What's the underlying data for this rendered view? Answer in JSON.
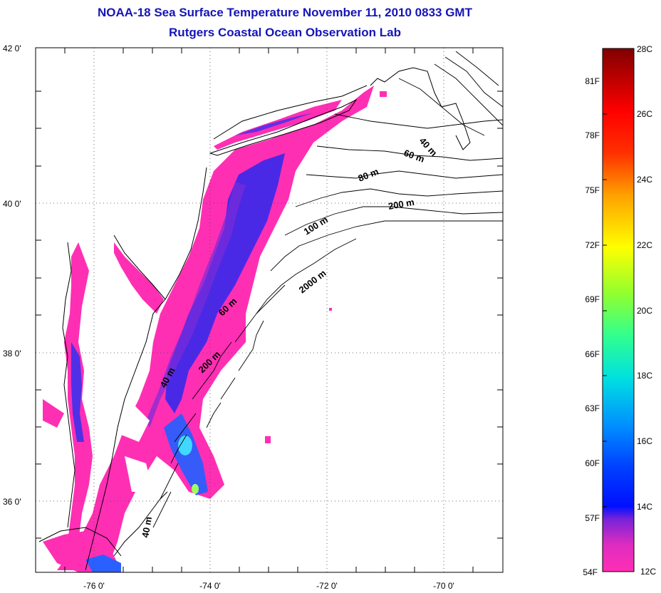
{
  "title": {
    "line1": "NOAA-18 Sea Surface Temperature November 11, 2010 0833 GMT",
    "line2": "Rutgers Coastal Ocean Observation Lab"
  },
  "map": {
    "lat_ticks": [
      "42 0'",
      "40 0'",
      "38 0'",
      "36 0'"
    ],
    "lon_ticks": [
      "-76 0'",
      "-74 0'",
      "-72 0'",
      "-70 0'"
    ],
    "contour_labels": [
      "40 m",
      "60 m",
      "80 m",
      "200 m",
      "100 m",
      "2000 m",
      "60 m",
      "200 m",
      "40 m",
      "40 m"
    ],
    "land_color": "#ffffff",
    "coast_color": "#000000"
  },
  "colorbar": {
    "celsius": [
      "28C",
      "26C",
      "24C",
      "22C",
      "20C",
      "18C",
      "16C",
      "14C",
      "12C"
    ],
    "fahrenheit": [
      "81F",
      "78F",
      "75F",
      "72F",
      "69F",
      "66F",
      "63F",
      "60F",
      "57F",
      "54F"
    ],
    "colors": [
      "#ff2fb4",
      "#6a23d0",
      "#0010ff",
      "#0080ff",
      "#00e0e0",
      "#40ff90",
      "#ffff00",
      "#ff9000",
      "#ff0000",
      "#800000"
    ]
  }
}
